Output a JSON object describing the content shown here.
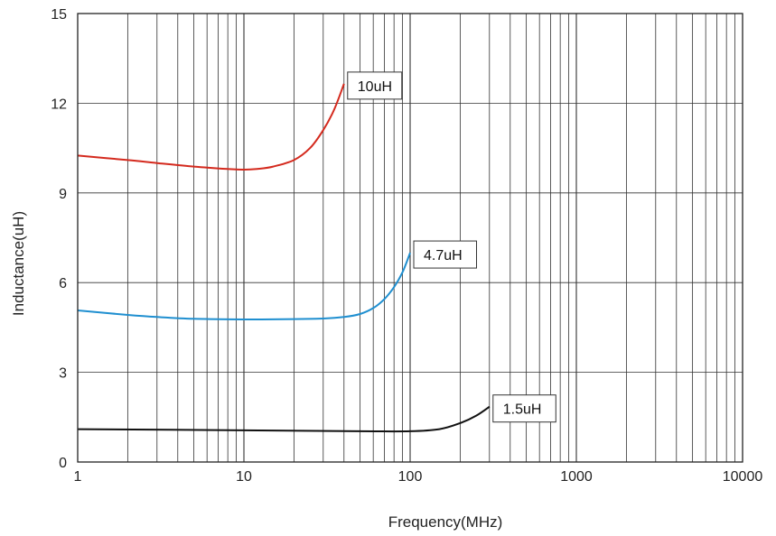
{
  "chart_data": {
    "type": "line",
    "xlabel": "Frequency(MHz)",
    "ylabel": "Inductance(uH)",
    "x_scale": "log",
    "xlim": [
      1,
      10000
    ],
    "ylim": [
      0,
      15
    ],
    "grid": true,
    "x_ticks": [
      {
        "value": 1,
        "label": "1"
      },
      {
        "value": 10,
        "label": "10"
      },
      {
        "value": 100,
        "label": "100"
      },
      {
        "value": 1000,
        "label": "1000"
      },
      {
        "value": 10000,
        "label": "10000"
      }
    ],
    "y_ticks": [
      {
        "value": 0,
        "label": "0"
      },
      {
        "value": 3,
        "label": "3"
      },
      {
        "value": 6,
        "label": "6"
      },
      {
        "value": 9,
        "label": "9"
      },
      {
        "value": 12,
        "label": "12"
      },
      {
        "value": 15,
        "label": "15"
      }
    ],
    "series": [
      {
        "name": "10uH",
        "color": "#d42a1e",
        "x": [
          1,
          2,
          3,
          5,
          8,
          10,
          12,
          15,
          20,
          25,
          30,
          35,
          40
        ],
        "y": [
          10.25,
          10.1,
          10.0,
          9.88,
          9.8,
          9.78,
          9.8,
          9.88,
          10.1,
          10.5,
          11.1,
          11.8,
          12.65
        ]
      },
      {
        "name": "4.7uH",
        "color": "#1f8fd0",
        "x": [
          1,
          2,
          3,
          5,
          10,
          20,
          30,
          40,
          50,
          60,
          70,
          80,
          90,
          100
        ],
        "y": [
          5.07,
          4.92,
          4.85,
          4.79,
          4.77,
          4.78,
          4.8,
          4.85,
          4.95,
          5.15,
          5.45,
          5.85,
          6.35,
          7.0
        ]
      },
      {
        "name": "1.5uH",
        "color": "#111111",
        "x": [
          1,
          10,
          50,
          100,
          150,
          200,
          250,
          300
        ],
        "y": [
          1.1,
          1.06,
          1.03,
          1.03,
          1.1,
          1.3,
          1.55,
          1.85
        ]
      }
    ]
  }
}
